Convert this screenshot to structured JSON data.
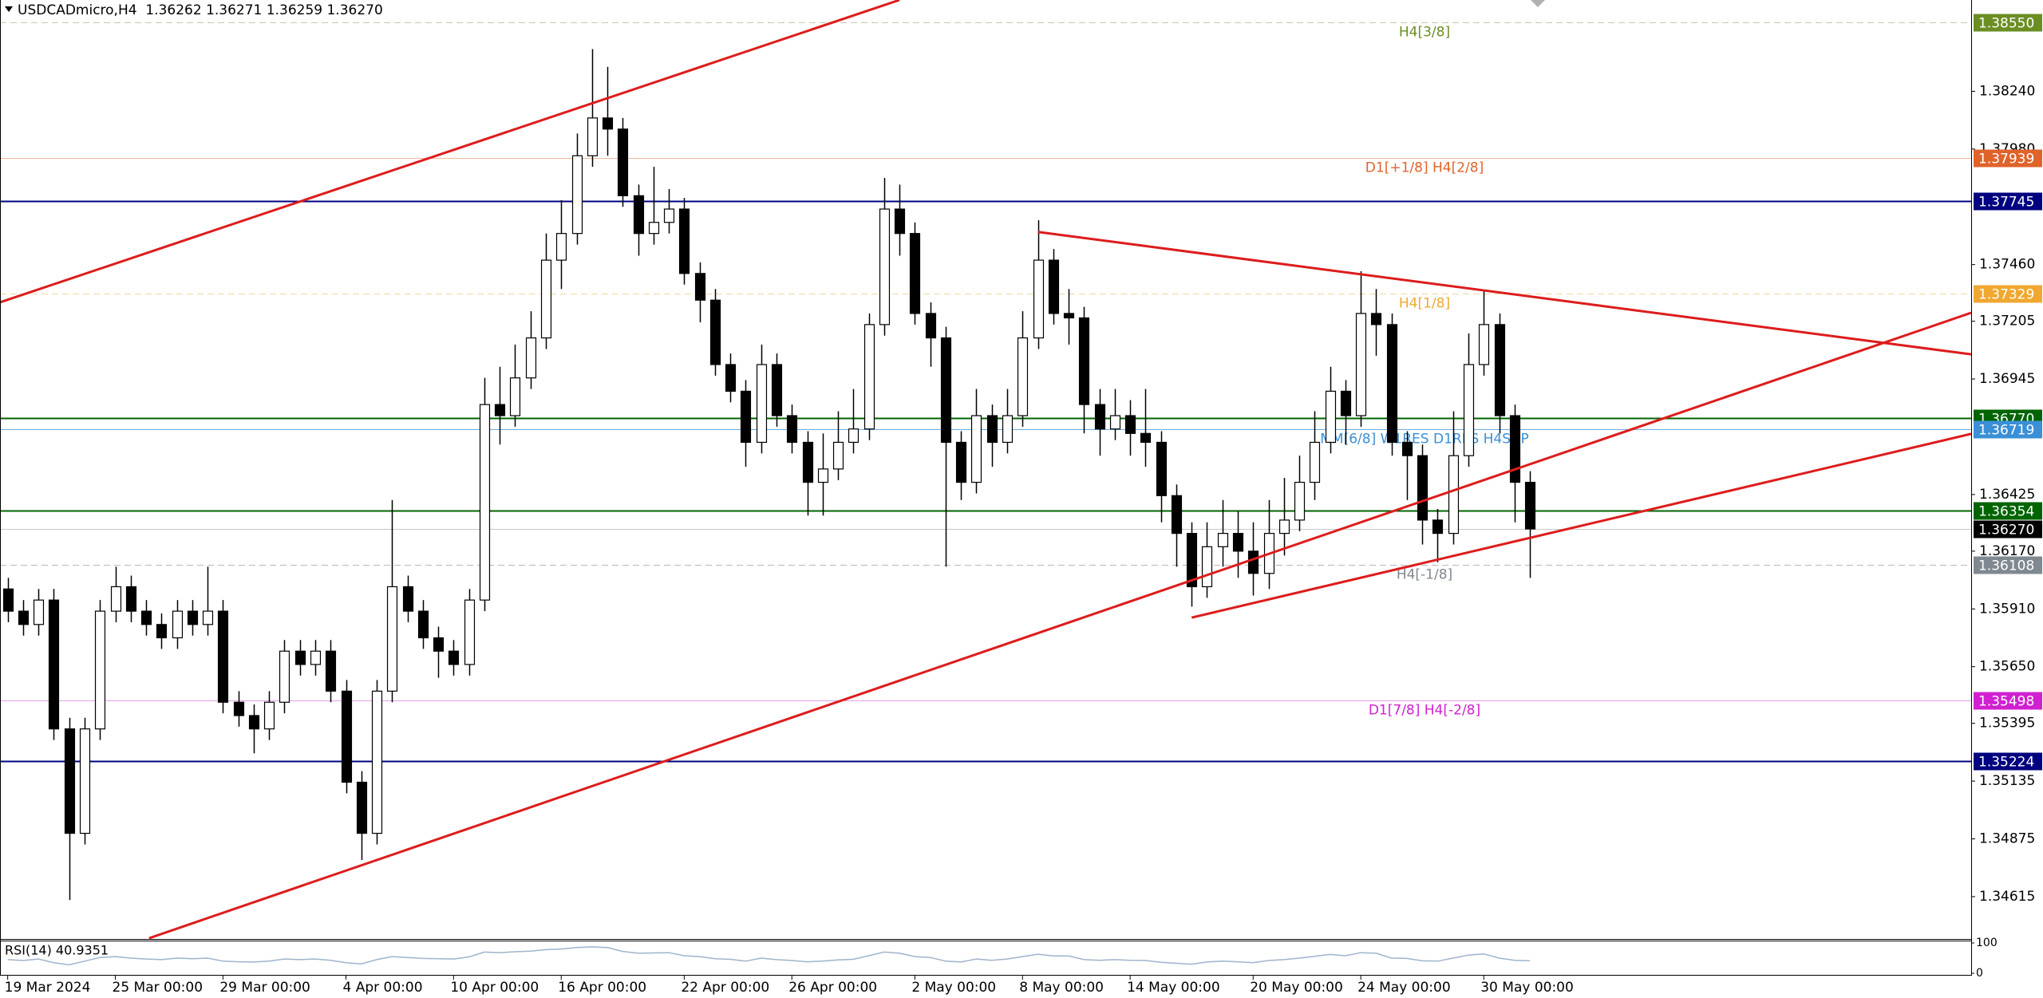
{
  "chart_data": {
    "type": "candlestick",
    "title": "USDCADmicro,H4  1.36262 1.36271 1.36259 1.36270",
    "categories": [
      "19 Mar 2024",
      null,
      null,
      null,
      null,
      null,
      null,
      "25 Mar 00:00",
      null,
      null,
      null,
      null,
      null,
      null,
      "29 Mar 00:00",
      null,
      null,
      null,
      null,
      null,
      null,
      null,
      "4 Apr 00:00",
      null,
      null,
      null,
      null,
      null,
      null,
      "10 Apr 00:00",
      null,
      null,
      null,
      null,
      null,
      null,
      "16 Apr 00:00",
      null,
      null,
      null,
      null,
      null,
      null,
      null,
      "22 Apr 00:00",
      null,
      null,
      null,
      null,
      null,
      null,
      "26 Apr 00:00",
      null,
      null,
      null,
      null,
      null,
      null,
      null,
      "2 May 00:00",
      null,
      null,
      null,
      null,
      null,
      null,
      "8 May 00:00",
      null,
      null,
      null,
      null,
      null,
      null,
      "14 May 00:00",
      null,
      null,
      null,
      null,
      null,
      null,
      null,
      "20 May 00:00",
      null,
      null,
      null,
      null,
      null,
      null,
      "24 May 00:00",
      null,
      null,
      null,
      null,
      null,
      null,
      null,
      "30 May 00:00",
      null,
      null,
      null
    ],
    "open": [
      1.36,
      1.359,
      1.3584,
      1.3595,
      1.3537,
      1.349,
      1.3537,
      1.359,
      1.3601,
      1.359,
      1.3584,
      1.3578,
      1.359,
      1.3584,
      1.359,
      1.3549,
      1.3543,
      1.3537,
      1.3549,
      1.3572,
      1.3566,
      1.3572,
      1.3554,
      1.3513,
      1.349,
      1.3554,
      1.3601,
      1.359,
      1.3578,
      1.3572,
      1.3566,
      1.3595,
      1.3683,
      1.3678,
      1.3695,
      1.3713,
      1.3748,
      1.376,
      1.3795,
      1.3812,
      1.3807,
      1.3777,
      1.376,
      1.3765,
      1.3771,
      1.3742,
      1.373,
      1.3701,
      1.3689,
      1.3666,
      1.3701,
      1.3678,
      1.3666,
      1.3648,
      1.3654,
      1.3666,
      1.3672,
      1.3719,
      1.3771,
      1.376,
      1.3724,
      1.3713,
      1.3666,
      1.3648,
      1.3678,
      1.3666,
      1.3678,
      1.3713,
      1.3748,
      1.3724,
      1.3722,
      1.3683,
      1.3672,
      1.3678,
      1.367,
      1.3666,
      1.3642,
      1.3625,
      1.3601,
      1.3619,
      1.3625,
      1.3617,
      1.3607,
      1.3625,
      1.3631,
      1.3648,
      1.3666,
      1.3689,
      1.3678,
      1.3724,
      1.3719,
      1.3666,
      1.366,
      1.3631,
      1.3625,
      1.366,
      1.3701,
      1.3719,
      1.3678,
      1.3648
    ],
    "high": [
      1.3605,
      1.3595,
      1.36,
      1.36,
      1.3542,
      1.3542,
      1.3595,
      1.361,
      1.3606,
      1.3595,
      1.3589,
      1.3595,
      1.3595,
      1.361,
      1.3595,
      1.3554,
      1.3548,
      1.3554,
      1.3577,
      1.3577,
      1.3577,
      1.3577,
      1.3559,
      1.3518,
      1.3559,
      1.364,
      1.3606,
      1.3595,
      1.3583,
      1.3577,
      1.36,
      1.3695,
      1.37,
      1.371,
      1.3725,
      1.376,
      1.3775,
      1.3805,
      1.3843,
      1.3835,
      1.3812,
      1.3782,
      1.379,
      1.378,
      1.3776,
      1.3747,
      1.3735,
      1.3706,
      1.3694,
      1.371,
      1.3706,
      1.3683,
      1.3671,
      1.367,
      1.368,
      1.369,
      1.3724,
      1.3785,
      1.3782,
      1.3765,
      1.3729,
      1.3718,
      1.3671,
      1.369,
      1.3683,
      1.369,
      1.3725,
      1.3766,
      1.3753,
      1.3735,
      1.3727,
      1.369,
      1.369,
      1.3685,
      1.369,
      1.3671,
      1.3647,
      1.363,
      1.363,
      1.364,
      1.3635,
      1.363,
      1.364,
      1.365,
      1.366,
      1.368,
      1.37,
      1.3694,
      1.3743,
      1.3735,
      1.3724,
      1.3671,
      1.3665,
      1.3636,
      1.368,
      1.3715,
      1.3734,
      1.3724,
      1.3683,
      1.3653
    ],
    "low": [
      1.3585,
      1.3579,
      1.3579,
      1.3532,
      1.346,
      1.3485,
      1.3532,
      1.3585,
      1.3585,
      1.3579,
      1.3573,
      1.3573,
      1.3579,
      1.3579,
      1.3544,
      1.3538,
      1.3526,
      1.3532,
      1.3544,
      1.3561,
      1.3561,
      1.3549,
      1.3508,
      1.3478,
      1.3485,
      1.3549,
      1.3585,
      1.3573,
      1.356,
      1.3561,
      1.3561,
      1.359,
      1.3665,
      1.3673,
      1.369,
      1.3708,
      1.3735,
      1.3755,
      1.379,
      1.3795,
      1.3772,
      1.375,
      1.3755,
      1.376,
      1.3737,
      1.372,
      1.3696,
      1.3684,
      1.3655,
      1.3661,
      1.3673,
      1.3661,
      1.3633,
      1.3633,
      1.3649,
      1.3661,
      1.3667,
      1.3714,
      1.375,
      1.3719,
      1.37,
      1.361,
      1.364,
      1.3643,
      1.3655,
      1.3661,
      1.3673,
      1.3708,
      1.3719,
      1.371,
      1.367,
      1.366,
      1.3667,
      1.366,
      1.3655,
      1.363,
      1.361,
      1.3592,
      1.3596,
      1.361,
      1.3605,
      1.3597,
      1.36,
      1.3615,
      1.3626,
      1.364,
      1.3661,
      1.3665,
      1.3673,
      1.3705,
      1.366,
      1.364,
      1.362,
      1.3612,
      1.362,
      1.3655,
      1.3696,
      1.367,
      1.363,
      1.3605
    ],
    "close": [
      1.359,
      1.3584,
      1.3595,
      1.3537,
      1.349,
      1.3537,
      1.359,
      1.3601,
      1.359,
      1.3584,
      1.3578,
      1.359,
      1.3584,
      1.359,
      1.3549,
      1.3543,
      1.3537,
      1.3549,
      1.3572,
      1.3566,
      1.3572,
      1.3554,
      1.3513,
      1.349,
      1.3554,
      1.3601,
      1.359,
      1.3578,
      1.3572,
      1.3566,
      1.3595,
      1.3683,
      1.3678,
      1.3695,
      1.3713,
      1.3748,
      1.376,
      1.3795,
      1.3812,
      1.3807,
      1.3777,
      1.376,
      1.3765,
      1.3771,
      1.3742,
      1.373,
      1.3701,
      1.3689,
      1.3666,
      1.3701,
      1.3678,
      1.3666,
      1.3648,
      1.3654,
      1.3666,
      1.3672,
      1.3719,
      1.3771,
      1.376,
      1.3724,
      1.3713,
      1.3666,
      1.3648,
      1.3678,
      1.3666,
      1.3678,
      1.3713,
      1.3748,
      1.3724,
      1.3722,
      1.3683,
      1.3672,
      1.3678,
      1.367,
      1.3666,
      1.3642,
      1.3625,
      1.3601,
      1.3619,
      1.3625,
      1.3617,
      1.3607,
      1.3625,
      1.3631,
      1.3648,
      1.3666,
      1.3689,
      1.3678,
      1.3724,
      1.3719,
      1.3666,
      1.366,
      1.3631,
      1.3625,
      1.366,
      1.3701,
      1.3719,
      1.3678,
      1.3648,
      1.3627
    ],
    "colors": {
      "up": "#ffffff",
      "down": "#000000",
      "outline": "#000000"
    },
    "xlim": [
      -0.5,
      127.7
    ],
    "ylim": [
      1.34428,
      1.38651
    ],
    "yticks": [
      {
        "value": 1.3824,
        "label": "1.38240"
      },
      {
        "value": 1.3798,
        "label": "1.37980"
      },
      {
        "value": 1.3746,
        "label": "1.37460"
      },
      {
        "value": 1.37205,
        "label": "1.37205"
      },
      {
        "value": 1.36945,
        "label": "1.36945"
      },
      {
        "value": 1.36425,
        "label": "1.36425"
      },
      {
        "value": 1.3617,
        "label": "1.36170"
      },
      {
        "value": 1.3591,
        "label": "1.35910"
      },
      {
        "value": 1.3565,
        "label": "1.35650"
      },
      {
        "value": 1.35395,
        "label": "1.35395"
      },
      {
        "value": 1.35135,
        "label": "1.35135"
      },
      {
        "value": 1.34875,
        "label": "1.34875"
      },
      {
        "value": 1.34615,
        "label": "1.34615"
      }
    ],
    "levels": [
      {
        "value": 1.3855,
        "label": "1.38550",
        "color": "#6b8e23",
        "line_color": "#c8c8b0",
        "dash": true,
        "width": 1,
        "note": "H4[3/8]"
      },
      {
        "value": 1.37939,
        "label": "1.37939",
        "color": "#e0632a",
        "line_color": "#f2b898",
        "dash": false,
        "width": 1,
        "note": "D1[+1/8] H4[2/8]"
      },
      {
        "value": 1.37745,
        "label": "1.37745",
        "color": "#000080",
        "dash": false,
        "width": 2
      },
      {
        "value": 1.37329,
        "label": "1.37329",
        "color": "#f0a830",
        "line_color": "#f0d8a0",
        "dash": true,
        "width": 1,
        "note": "H4[1/8]"
      },
      {
        "value": 1.3677,
        "label": "1.36770",
        "color": "#006400",
        "dash": false,
        "width": 2
      },
      {
        "value": 1.36719,
        "label": "1.36719",
        "color": "#3a8fd6",
        "line_color": "#6aaee0",
        "dash": false,
        "width": 1,
        "note": "MM[6/8] W1RES D1RES H4SUP"
      },
      {
        "value": 1.36354,
        "label": "1.36354",
        "color": "#006400",
        "dash": false,
        "width": 2
      },
      {
        "value": 1.3627,
        "label": "1.36270",
        "color": "#000000",
        "line_color": "#c8c8c8",
        "dash": false,
        "width": 1
      },
      {
        "value": 1.36108,
        "label": "1.36108",
        "color": "#808890",
        "line_color": "#b8b8b8",
        "dash": true,
        "width": 1,
        "note": "H4[-1/8]"
      },
      {
        "value": 1.35498,
        "label": "1.35498",
        "color": "#d020d0",
        "line_color": "#e0a0e0",
        "dash": false,
        "width": 1,
        "note": "D1[7/8] H4[-2/8]"
      },
      {
        "value": 1.35224,
        "label": "1.35224",
        "color": "#000080",
        "dash": false,
        "width": 2
      }
    ],
    "trendlines": [
      {
        "color": "#dd1c1c",
        "x": [
          -0.5,
          58
        ],
        "y": [
          1.3729,
          1.38651
        ]
      },
      {
        "color": "#dd1c1c",
        "x": [
          9.2,
          127.7
        ],
        "y": [
          1.34428,
          1.37243
        ]
      },
      {
        "color": "#dd1c1c",
        "x": [
          67,
          127.7
        ],
        "y": [
          1.37607,
          1.37056
        ]
      },
      {
        "color": "#dd1c1c",
        "x": [
          77,
          127.7
        ],
        "y": [
          1.35871,
          1.36698
        ]
      }
    ],
    "rsi": {
      "label": "RSI(14) 40.9351",
      "color": "#9fb4cc",
      "ylim": [
        0,
        100
      ],
      "yticks": [
        100,
        0
      ],
      "values": [
        45,
        42,
        47,
        35,
        28,
        40,
        52,
        55,
        50,
        47,
        45,
        50,
        48,
        50,
        40,
        38,
        37,
        40,
        47,
        45,
        47,
        43,
        35,
        31,
        45,
        55,
        52,
        49,
        48,
        47,
        54,
        70,
        68,
        71,
        73,
        78,
        80,
        85,
        87,
        85,
        72,
        66,
        67,
        68,
        58,
        55,
        48,
        46,
        40,
        50,
        45,
        42,
        38,
        40,
        44,
        46,
        58,
        70,
        66,
        55,
        52,
        40,
        37,
        47,
        43,
        47,
        55,
        63,
        57,
        57,
        45,
        43,
        45,
        43,
        42,
        36,
        33,
        30,
        37,
        40,
        38,
        35,
        42,
        45,
        50,
        56,
        62,
        58,
        68,
        66,
        50,
        49,
        41,
        40,
        50,
        60,
        64,
        50,
        43,
        40.9351
      ]
    }
  }
}
